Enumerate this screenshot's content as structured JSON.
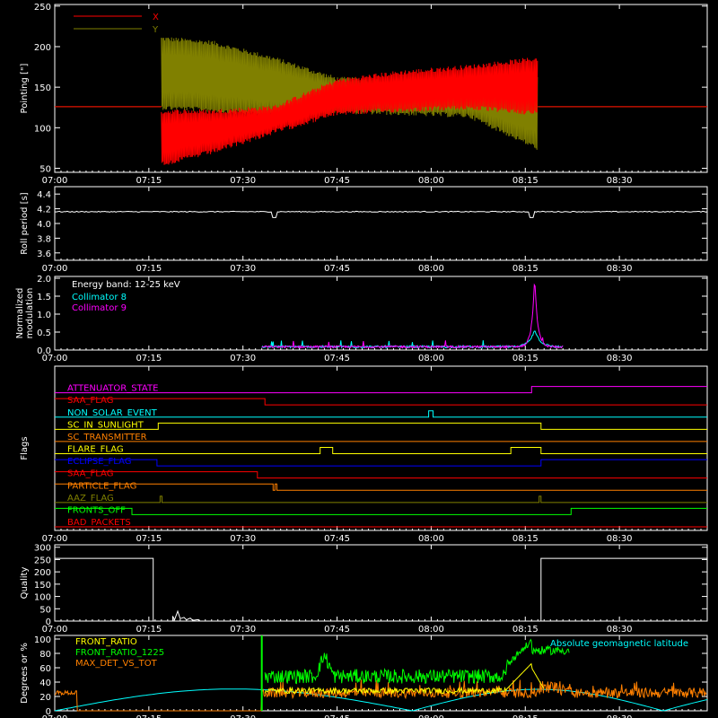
{
  "time_axis": {
    "ticks": [
      "07:00",
      "07:15",
      "07:30",
      "07:45",
      "08:00",
      "08:15",
      "08:30"
    ],
    "x_range_minutes": [
      0,
      104
    ]
  },
  "chart_data": [
    {
      "type": "line",
      "ylabel": "Pointing [\"]",
      "ylim": [
        45,
        252
      ],
      "yticks": [
        "50",
        "100",
        "150",
        "200",
        "250"
      ],
      "legend": [
        {
          "name": "X",
          "color": "#ff0000"
        },
        {
          "name": "Y",
          "color": "#808000"
        }
      ],
      "series": [
        {
          "name": "X",
          "color": "#ff0000",
          "envelope": [
            {
              "t": 17,
              "lo": 55,
              "hi": 120
            },
            {
              "t": 25,
              "lo": 70,
              "hi": 120
            },
            {
              "t": 35,
              "lo": 95,
              "hi": 125
            },
            {
              "t": 45,
              "lo": 118,
              "hi": 158
            },
            {
              "t": 55,
              "lo": 122,
              "hi": 168
            },
            {
              "t": 66,
              "lo": 125,
              "hi": 175
            },
            {
              "t": 77,
              "lo": 118,
              "hi": 185
            }
          ],
          "baseline": 126
        },
        {
          "name": "Y",
          "color": "#808000",
          "envelope": [
            {
              "t": 17,
              "lo": 125,
              "hi": 210
            },
            {
              "t": 25,
              "lo": 122,
              "hi": 205
            },
            {
              "t": 35,
              "lo": 115,
              "hi": 185
            },
            {
              "t": 45,
              "lo": 120,
              "hi": 160
            },
            {
              "t": 55,
              "lo": 118,
              "hi": 157
            },
            {
              "t": 66,
              "lo": 115,
              "hi": 160
            },
            {
              "t": 77,
              "lo": 75,
              "hi": 160
            }
          ],
          "baseline": 126
        }
      ]
    },
    {
      "type": "line",
      "ylabel": "Roll period [s]",
      "ylim": [
        3.5,
        4.5
      ],
      "yticks": [
        "3.6",
        "3.8",
        "4.0",
        "4.2",
        "4.4"
      ],
      "series": [
        {
          "name": "",
          "color": "#ffffff",
          "value": 4.16
        }
      ]
    },
    {
      "type": "line",
      "ylabel": "Normalized modulation",
      "ylim": [
        0,
        2.05
      ],
      "yticks": [
        "0.0",
        "0.5",
        "1.0",
        "1.5",
        "2.0"
      ],
      "annotation": "Energy band: 12-25 keV",
      "legend": [
        {
          "name": "Collimator 8",
          "color": "#00ffff"
        },
        {
          "name": "Collimator 9",
          "color": "#ff00ff"
        }
      ],
      "series": [
        {
          "name": "Collimator 8",
          "color": "#00ffff",
          "t_start": 33,
          "t_end": 81,
          "base": 0.06,
          "peak_t": 76.5,
          "peak": 0.55
        },
        {
          "name": "Collimator 9",
          "color": "#ff00ff",
          "t_start": 33,
          "t_end": 81,
          "base": 0.06,
          "peak_t": 76.5,
          "peak": 2.0
        }
      ]
    },
    {
      "type": "line",
      "ylabel": "Flags",
      "flags": [
        {
          "name": "ATTENUATOR_STATE",
          "color": "#ff00ff",
          "segments": [
            [
              0,
              76,
              0
            ],
            [
              76,
              104,
              1
            ]
          ]
        },
        {
          "name": "SAA_FLAG",
          "color": "#ff0000",
          "segments": [
            [
              0,
              33.5,
              1
            ],
            [
              33.5,
              104,
              0
            ]
          ]
        },
        {
          "name": "NON_SOLAR_EVENT",
          "color": "#00ffff",
          "segments": [
            [
              0,
              59.6,
              0
            ],
            [
              59.6,
              60.3,
              1
            ],
            [
              60.3,
              104,
              0
            ]
          ]
        },
        {
          "name": "SC_IN_SUNLIGHT",
          "color": "#ffff00",
          "segments": [
            [
              0,
              16.5,
              0
            ],
            [
              16.5,
              77.5,
              1
            ],
            [
              77.5,
              104,
              0
            ]
          ]
        },
        {
          "name": "SC_TRANSMITTER",
          "color": "#ff8000",
          "segments": [
            [
              0,
              104,
              0
            ]
          ]
        },
        {
          "name": "FLARE_FLAG",
          "color": "#ffff00",
          "segments": [
            [
              0,
              42.3,
              0
            ],
            [
              42.3,
              44.3,
              1
            ],
            [
              44.3,
              72.7,
              0
            ],
            [
              72.7,
              77.5,
              1
            ],
            [
              77.5,
              104,
              0
            ]
          ]
        },
        {
          "name": "ECLIPSE_FLAG",
          "color": "#0000ff",
          "segments": [
            [
              0,
              16.3,
              1
            ],
            [
              16.3,
              77.5,
              0
            ],
            [
              77.5,
              104,
              1
            ]
          ]
        },
        {
          "name": "SAA_FLAG",
          "color": "#ff0000",
          "segments": [
            [
              0,
              32.3,
              1
            ],
            [
              32.3,
              104,
              0
            ]
          ]
        },
        {
          "name": "PARTICLE_FLAG",
          "color": "#ff8000",
          "segments": [
            [
              0,
              34.8,
              1
            ],
            [
              34.8,
              35.1,
              0
            ],
            [
              35.1,
              35.4,
              1
            ],
            [
              35.4,
              104,
              0
            ]
          ]
        },
        {
          "name": "AAZ_FLAG",
          "color": "#808000",
          "segments": [
            [
              0,
              16.8,
              0
            ],
            [
              16.8,
              17.1,
              1
            ],
            [
              17.1,
              77.2,
              0
            ],
            [
              77.2,
              77.5,
              1
            ],
            [
              77.5,
              104,
              0
            ]
          ]
        },
        {
          "name": "FRONTS_OFF",
          "color": "#00ff00",
          "segments": [
            [
              0,
              12.3,
              1
            ],
            [
              12.3,
              82.3,
              0
            ],
            [
              82.3,
              104,
              1
            ]
          ]
        },
        {
          "name": "BAD_PACKETS",
          "color": "#ff0000",
          "segments": [
            [
              0,
              104,
              0
            ]
          ]
        }
      ]
    },
    {
      "type": "line",
      "ylabel": "Quality",
      "ylim": [
        0,
        310
      ],
      "yticks": [
        "0",
        "50",
        "100",
        "150",
        "200",
        "250",
        "300"
      ],
      "series": [
        {
          "name": "",
          "color": "#ffffff",
          "points": [
            [
              0,
              255
            ],
            [
              15.7,
              255
            ],
            [
              15.7,
              0
            ],
            [
              18.8,
              0
            ],
            [
              18.8,
              20
            ],
            [
              19.1,
              5
            ],
            [
              19.6,
              40
            ],
            [
              20,
              10
            ],
            [
              20.6,
              15
            ],
            [
              21,
              5
            ],
            [
              21.6,
              12
            ],
            [
              22,
              3
            ],
            [
              22.8,
              6
            ],
            [
              23.2,
              0
            ],
            [
              77.5,
              0
            ],
            [
              77.5,
              255
            ],
            [
              104,
              255
            ]
          ]
        }
      ]
    },
    {
      "type": "line",
      "ylabel": "Degrees or %",
      "ylim": [
        0,
        105
      ],
      "yticks": [
        "0",
        "20",
        "40",
        "60",
        "80",
        "100"
      ],
      "legend": [
        {
          "name": "FRONT_RATIO",
          "color": "#ffff00"
        },
        {
          "name": "FRONT_RATIO_1225",
          "color": "#00ff00"
        },
        {
          "name": "MAX_DET_VS_TOT",
          "color": "#ff8000"
        },
        {
          "name": "Absolute geomagnetic latitude",
          "color": "#00ffff"
        }
      ],
      "series": [
        {
          "name": "FRONT_RATIO",
          "color": "#ffff00"
        },
        {
          "name": "FRONT_RATIO_1225",
          "color": "#00ff00"
        },
        {
          "name": "MAX_DET_VS_TOT",
          "color": "#ff8000"
        },
        {
          "name": "Absolute geomagnetic latitude",
          "color": "#00ffff"
        }
      ]
    }
  ]
}
